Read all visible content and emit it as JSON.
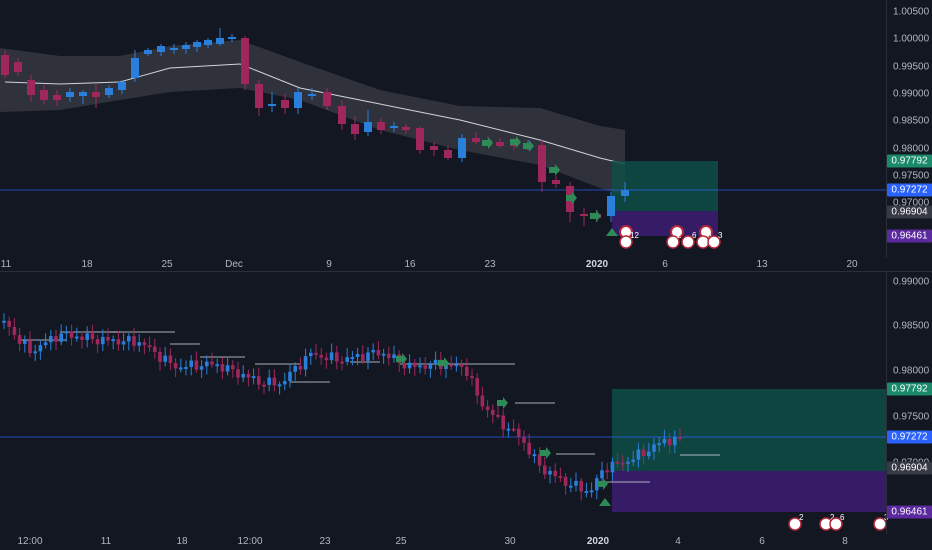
{
  "colors": {
    "background": "#131722",
    "bull": "#2a7fdb",
    "bear": "#a0275c",
    "band": "#3a3c44",
    "ma_line": "#d1d4dc",
    "profit_zone": "#0f4d47",
    "loss_zone": "#3b1d6e",
    "current_price": "#2962ff",
    "arrow": "#2e8b57",
    "badge_green": "#1b8a6b",
    "badge_gray": "#363a45",
    "badge_purple": "#5b2a9e",
    "badge_blue": "#2962ff"
  },
  "top_chart": {
    "price_ticks": [
      "1.00500",
      "1.00000",
      "0.99500",
      "0.99000",
      "0.98500",
      "0.98000",
      "0.97500",
      "0.97000"
    ],
    "time_labels": [
      {
        "text": "11",
        "bold": false
      },
      {
        "text": "18",
        "bold": false
      },
      {
        "text": "25",
        "bold": false
      },
      {
        "text": "Dec",
        "bold": false
      },
      {
        "text": "9",
        "bold": false
      },
      {
        "text": "16",
        "bold": false
      },
      {
        "text": "23",
        "bold": false
      },
      {
        "text": "2020",
        "bold": true
      },
      {
        "text": "6",
        "bold": false
      },
      {
        "text": "13",
        "bold": false
      },
      {
        "text": "20",
        "bold": false
      }
    ],
    "badges": [
      {
        "value": "0.97792",
        "style": "green"
      },
      {
        "value": "0.97272",
        "style": "blue"
      },
      {
        "value": "0.96904",
        "style": "gray"
      },
      {
        "value": "0.96461",
        "style": "purple"
      }
    ],
    "event_badges": [
      "12",
      "2",
      "6",
      "6",
      "3"
    ]
  },
  "bottom_chart": {
    "price_ticks": [
      "0.99000",
      "0.98500",
      "0.98000",
      "0.97500",
      "0.97000"
    ],
    "time_labels": [
      {
        "text": "12:00",
        "bold": false
      },
      {
        "text": "11",
        "bold": false
      },
      {
        "text": "18",
        "bold": false
      },
      {
        "text": "12:00",
        "bold": false
      },
      {
        "text": "23",
        "bold": false
      },
      {
        "text": "25",
        "bold": false
      },
      {
        "text": "30",
        "bold": false
      },
      {
        "text": "2020",
        "bold": true
      },
      {
        "text": "4",
        "bold": false
      },
      {
        "text": "6",
        "bold": false
      },
      {
        "text": "8",
        "bold": false
      }
    ],
    "badges": [
      {
        "value": "0.97792",
        "style": "green"
      },
      {
        "value": "0.97272",
        "style": "blue"
      },
      {
        "value": "0.96904",
        "style": "gray"
      },
      {
        "value": "0.96461",
        "style": "purple"
      }
    ],
    "event_badges": [
      "2",
      "2",
      "6",
      "3"
    ]
  }
}
